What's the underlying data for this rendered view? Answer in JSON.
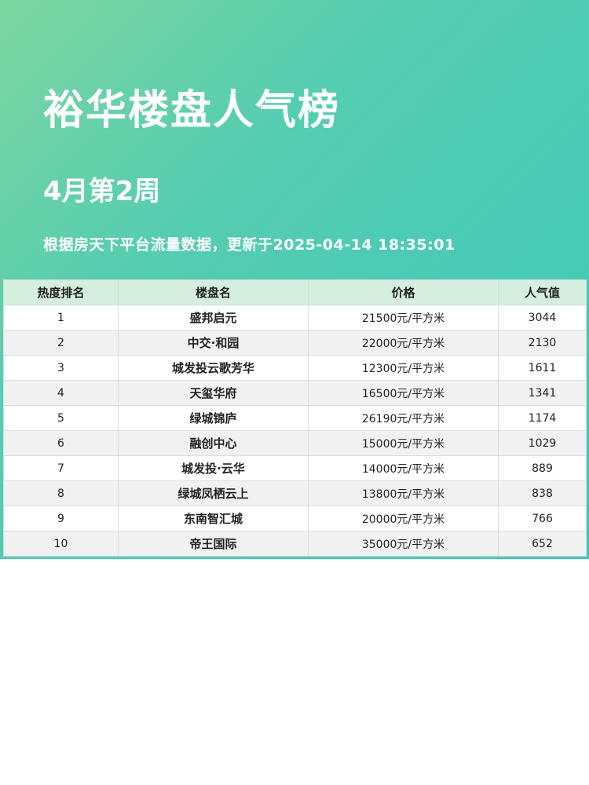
{
  "title": "裕华楼盘人气榜",
  "week": "4月第2周",
  "info": "根据房天下平台流量数据，更新于2025-04-14 18:35:01",
  "colors": {
    "gradient_start": "#7dd6a0",
    "gradient_end": "#3ec7bc",
    "header_bg": "#d5eedd"
  },
  "table": {
    "headers": [
      "热度排名",
      "楼盘名",
      "价格",
      "人气值"
    ],
    "rows": [
      [
        "1",
        "盛邦启元",
        "21500元/平方米",
        "3044"
      ],
      [
        "2",
        "中交·和园",
        "22000元/平方米",
        "2130"
      ],
      [
        "3",
        "城发投云歌芳华",
        "12300元/平方米",
        "1611"
      ],
      [
        "4",
        "天玺华府",
        "16500元/平方米",
        "1341"
      ],
      [
        "5",
        "绿城锦庐",
        "26190元/平方米",
        "1174"
      ],
      [
        "6",
        "融创中心",
        "15000元/平方米",
        "1029"
      ],
      [
        "7",
        "城发投·云华",
        "14000元/平方米",
        "889"
      ],
      [
        "8",
        "绿城凤栖云上",
        "13800元/平方米",
        "838"
      ],
      [
        "9",
        "东南智汇城",
        "20000元/平方米",
        "766"
      ],
      [
        "10",
        "帝王国际",
        "35000元/平方米",
        "652"
      ]
    ]
  }
}
